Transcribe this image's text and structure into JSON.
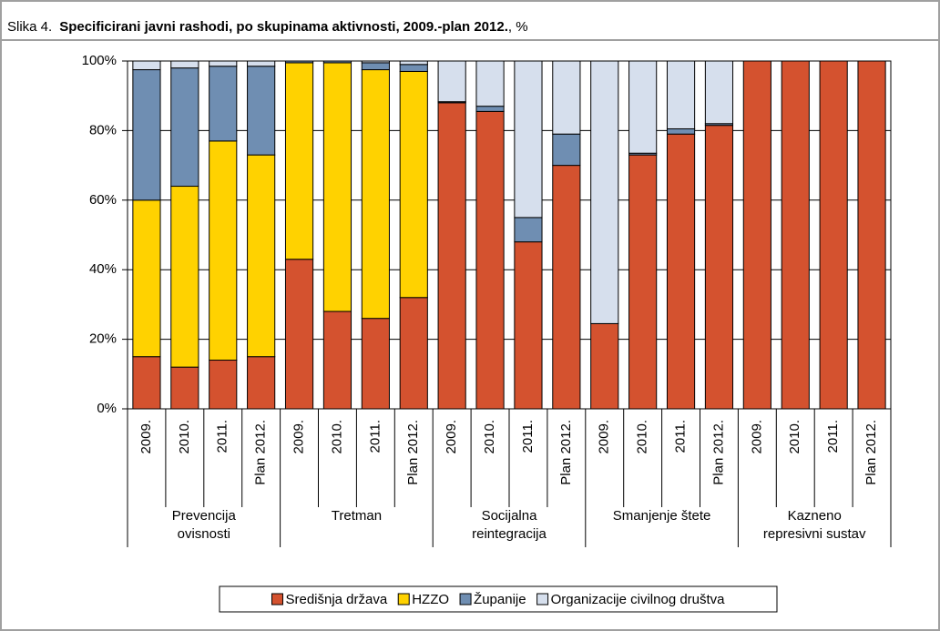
{
  "chart_data": {
    "type": "stacked_bar",
    "title_prefix": "Slika 4.",
    "title": "Specificirani javni rashodi, po skupinama aktivnosti, 2009.-plan 2012.",
    "title_suffix": ", %",
    "groups": [
      {
        "label": [
          "Prevencija",
          "ovisnosti"
        ],
        "categories": [
          "2009.",
          "2010.",
          "2011.",
          "Plan 2012."
        ]
      },
      {
        "label": [
          "Tretman"
        ],
        "categories": [
          "2009.",
          "2010.",
          "2011.",
          "Plan 2012."
        ]
      },
      {
        "label": [
          "Socijalna",
          "reintegracija"
        ],
        "categories": [
          "2009.",
          "2010.",
          "2011.",
          "Plan 2012."
        ]
      },
      {
        "label": [
          "Smanjenje štete"
        ],
        "categories": [
          "2009.",
          "2010.",
          "2011.",
          "Plan 2012."
        ]
      },
      {
        "label": [
          "Kazneno",
          "represivni sustav"
        ],
        "categories": [
          "2009.",
          "2010.",
          "2011.",
          "Plan 2012."
        ]
      }
    ],
    "series": [
      {
        "name": "Središnja država",
        "color": "#d4522f",
        "values": [
          15,
          12,
          14,
          15,
          43,
          28,
          26,
          32,
          88,
          85.5,
          48,
          70,
          24.5,
          73,
          79,
          81.5,
          100,
          100,
          100,
          100
        ]
      },
      {
        "name": "HZZO",
        "color": "#ffd200",
        "values": [
          45,
          52,
          63,
          58,
          56.5,
          71.5,
          71.5,
          65,
          0,
          0,
          0,
          0,
          0,
          0,
          0,
          0,
          0,
          0,
          0,
          0
        ]
      },
      {
        "name": "Županije",
        "color": "#6f8eb2",
        "values": [
          37.5,
          34,
          21.5,
          25.5,
          0.5,
          0.5,
          2,
          2,
          0.3,
          1.5,
          7,
          9,
          0,
          0.5,
          1.5,
          0.5,
          0,
          0,
          0,
          0
        ]
      },
      {
        "name": "Organizacije civilnog društva",
        "color": "#d6dfed",
        "values": [
          2.5,
          2,
          1.5,
          1.5,
          0,
          0,
          0.5,
          1,
          11.7,
          13,
          45,
          21,
          75.5,
          26.5,
          19.5,
          18,
          0,
          0,
          0,
          0
        ]
      }
    ],
    "ylim": [
      0,
      100
    ],
    "yticks": [
      {
        "value": 0,
        "label": "0%"
      },
      {
        "value": 20,
        "label": "20%"
      },
      {
        "value": 40,
        "label": "40%"
      },
      {
        "value": 60,
        "label": "60%"
      },
      {
        "value": 80,
        "label": "80%"
      },
      {
        "value": 100,
        "label": "100%"
      }
    ],
    "grid": true
  }
}
